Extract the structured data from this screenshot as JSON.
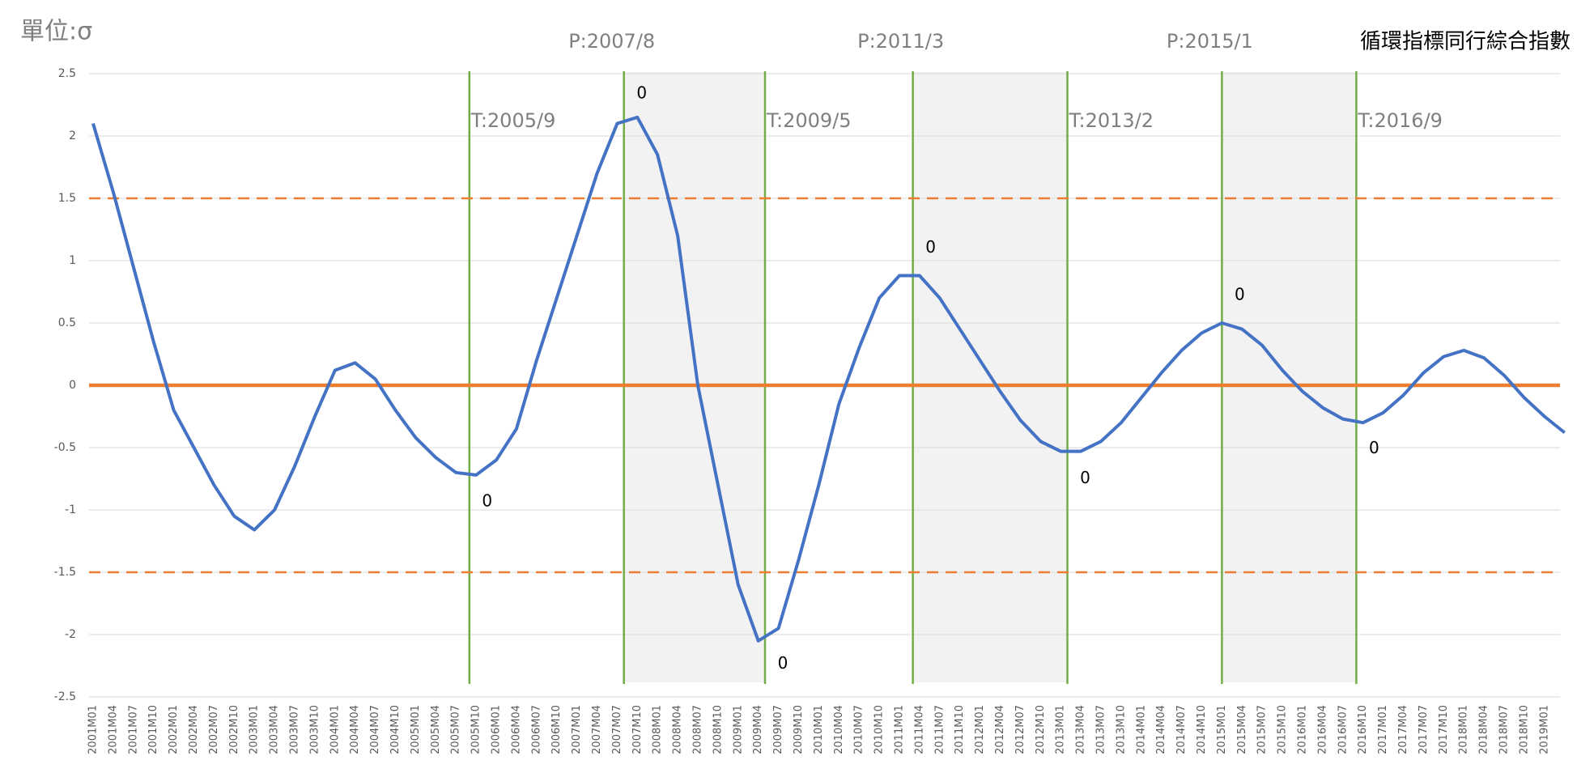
{
  "chart_data": {
    "type": "line",
    "title": "循環指標同行綜合指數",
    "unit_label": "單位:σ",
    "categories": [
      "2001M01",
      "2001M04",
      "2001M07",
      "2001M10",
      "2002M01",
      "2002M04",
      "2002M07",
      "2002M10",
      "2003M01",
      "2003M04",
      "2003M07",
      "2003M10",
      "2004M01",
      "2004M04",
      "2004M07",
      "2004M10",
      "2005M01",
      "2005M04",
      "2005M07",
      "2005M10",
      "2006M01",
      "2006M04",
      "2006M07",
      "2006M10",
      "2007M01",
      "2007M04",
      "2007M07",
      "2007M10",
      "2008M01",
      "2008M04",
      "2008M07",
      "2008M10",
      "2009M01",
      "2009M04",
      "2009M07",
      "2009M10",
      "2010M01",
      "2010M04",
      "2010M07",
      "2010M10",
      "2011M01",
      "2011M04",
      "2011M07",
      "2011M10",
      "2012M01",
      "2012M04",
      "2012M07",
      "2012M10",
      "2013M01",
      "2013M04",
      "2013M07",
      "2013M10",
      "2014M01",
      "2014M04",
      "2014M07",
      "2014M10",
      "2015M01",
      "2015M04",
      "2015M07",
      "2015M10",
      "2016M01",
      "2016M04",
      "2016M07",
      "2016M10",
      "2017M01",
      "2017M04",
      "2017M07",
      "2017M10",
      "2018M01",
      "2018M04",
      "2018M07",
      "2018M10",
      "2019M01",
      null
    ],
    "series": [
      {
        "name": "循環指標同行綜合指數",
        "color": "#4472c4",
        "values": [
          2.1,
          1.55,
          0.95,
          0.35,
          -0.2,
          -0.5,
          -0.8,
          -1.05,
          -1.16,
          -1.0,
          -0.65,
          -0.25,
          0.12,
          0.18,
          0.05,
          -0.2,
          -0.42,
          -0.58,
          -0.7,
          -0.72,
          -0.6,
          -0.35,
          0.2,
          0.7,
          1.2,
          1.7,
          2.1,
          2.15,
          1.85,
          1.2,
          0.0,
          -0.8,
          -1.6,
          -2.05,
          -1.95,
          -1.4,
          -0.8,
          -0.15,
          0.3,
          0.7,
          0.88,
          0.88,
          0.7,
          0.45,
          0.2,
          -0.05,
          -0.28,
          -0.45,
          -0.53,
          -0.53,
          -0.45,
          -0.3,
          -0.1,
          0.1,
          0.28,
          0.42,
          0.5,
          0.45,
          0.32,
          0.12,
          -0.05,
          -0.18,
          -0.27,
          -0.3,
          -0.22,
          -0.08,
          0.1,
          0.23,
          0.28,
          0.22,
          0.08,
          -0.1,
          -0.25,
          -0.38
        ]
      }
    ],
    "ylim": [
      -2.5,
      2.5
    ],
    "yticks": [
      2.5,
      2,
      1.5,
      1,
      0.5,
      0,
      -0.5,
      -1,
      -1.5,
      -2,
      -2.5
    ],
    "grid": true,
    "reference_lines": [
      {
        "value": 0,
        "color": "#ed7d31",
        "dashed": false
      },
      {
        "value": 1.5,
        "color": "#ed7d31",
        "dashed": true
      },
      {
        "value": -1.5,
        "color": "#ed7d31",
        "dashed": true
      }
    ],
    "turning_points": [
      {
        "label": "T:2005/9",
        "value_label": "0"
      },
      {
        "label": "P:2007/8",
        "value_label": "0"
      },
      {
        "label": "T:2009/5",
        "value_label": "0"
      },
      {
        "label": "P:2011/3",
        "value_label": "0"
      },
      {
        "label": "T:2013/2",
        "value_label": "0"
      },
      {
        "label": "P:2015/1",
        "value_label": "0"
      },
      {
        "label": "T:2016/9",
        "value_label": "0"
      }
    ],
    "turning_line_color": "#70ad47",
    "shade_color": "#f2f2f2"
  }
}
